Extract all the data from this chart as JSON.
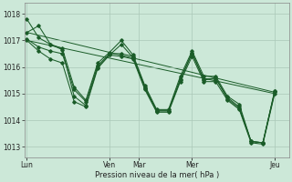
{
  "xlabel": "Pression niveau de la mer( hPa )",
  "bg_color": "#cce8d8",
  "grid_color": "#aac8b8",
  "line_color": "#1a5c28",
  "ylim": [
    1012.6,
    1018.4
  ],
  "yticks": [
    1013,
    1014,
    1015,
    1016,
    1017,
    1018
  ],
  "xlim": [
    -0.2,
    22.2
  ],
  "xtick_positions": [
    0,
    7,
    9.5,
    14,
    21
  ],
  "xtick_labels": [
    "Lun",
    "Ven",
    "Mar",
    "Mer",
    "Jeu"
  ],
  "vlines": [
    0,
    7,
    9.5,
    14,
    21
  ],
  "n_points": 22,
  "series": [
    [
      1017.3,
      1017.55,
      1016.85,
      1016.65,
      1014.9,
      1014.55,
      1016.0,
      1016.45,
      1016.85,
      1016.35,
      1015.2,
      1014.35,
      1014.35,
      1015.5,
      1016.55,
      1015.5,
      1015.6,
      1014.8,
      1014.45,
      1013.2,
      1013.15,
      1015.1
    ],
    [
      1017.05,
      1016.75,
      1016.6,
      1016.5,
      1015.15,
      1014.7,
      1016.05,
      1016.5,
      1016.5,
      1016.4,
      1015.25,
      1014.35,
      1014.35,
      1015.55,
      1016.5,
      1015.55,
      1015.55,
      1014.85,
      1014.5,
      1013.2,
      1013.15,
      1015.05
    ],
    [
      1017.8,
      1017.1,
      1016.85,
      1016.7,
      1015.25,
      1014.75,
      1016.15,
      1016.55,
      1017.0,
      1016.45,
      1015.3,
      1014.4,
      1014.4,
      1015.65,
      1016.6,
      1015.65,
      1015.65,
      1014.9,
      1014.6,
      1013.2,
      1013.15,
      1015.1
    ],
    [
      1017.0,
      1016.6,
      1016.3,
      1016.15,
      1014.7,
      1014.5,
      1015.95,
      1016.45,
      1016.4,
      1016.3,
      1015.15,
      1014.3,
      1014.3,
      1015.45,
      1016.4,
      1015.45,
      1015.45,
      1014.75,
      1014.4,
      1013.15,
      1013.1,
      1015.0
    ]
  ],
  "trend_lines": [
    [
      1017.3,
      1015.05
    ],
    [
      1017.0,
      1015.0
    ]
  ]
}
